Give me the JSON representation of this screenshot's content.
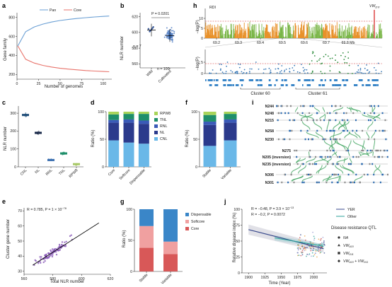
{
  "panels": {
    "a": {
      "label": "a",
      "legend": [
        "Pan",
        "Core"
      ],
      "colors": {
        "pan": "#6a9fd4",
        "core": "#e8736b"
      },
      "xlabel": "Number of genomes",
      "ylabel": "Gene family",
      "xticks": [
        "0",
        "25",
        "50",
        "75",
        "100"
      ],
      "yticks": [
        "200",
        "400",
        "600",
        "800"
      ]
    },
    "b": {
      "label": "b",
      "pvalue": "P = 0.0201",
      "n1": "n = 7",
      "n2": "n = 100",
      "ylabel": "NLR number",
      "yticks": [
        "560",
        "580",
        "600",
        "620"
      ],
      "categories": [
        "Wild",
        "Cultivated"
      ]
    },
    "c": {
      "label": "c",
      "ylabel": "NLR number",
      "yticks": [
        "0",
        "100",
        "200",
        "300"
      ],
      "categories": [
        "CNL",
        "NL",
        "RNL",
        "TNL",
        "RPW8"
      ],
      "colors": [
        "#1f4e79",
        "#1a2a4a",
        "#3b6fb0",
        "#1f8f6a",
        "#a8c868"
      ]
    },
    "d": {
      "label": "d",
      "ylabel": "Ratio (%)",
      "yticks": [
        "0",
        "50",
        "100"
      ],
      "categories": [
        "Core",
        "Softcore",
        "Dispensable"
      ],
      "legend": [
        "RPW8",
        "TNL",
        "RNL",
        "NL",
        "CNL"
      ],
      "colors": {
        "RPW8": "#a8d45a",
        "TNL": "#1f8f6a",
        "RNL": "#2b3a8c",
        "NL": "#2b3a8c",
        "CNL": "#6ab8e8"
      }
    },
    "e": {
      "label": "e",
      "annotation": "R = 0.785, P = 1 × 10",
      "annotation_exp": "−78",
      "xlabel": "Total NLR number",
      "ylabel": "Cluster gene number",
      "xticks": [
        "560",
        "580",
        "600",
        "620"
      ],
      "yticks": [
        "30",
        "40",
        "50",
        "60",
        "70"
      ]
    },
    "f": {
      "label": "f",
      "ylabel": "Ratio (%)",
      "yticks": [
        "0",
        "50",
        "100"
      ],
      "categories": [
        "Stable",
        "Variable"
      ]
    },
    "g": {
      "label": "g",
      "ylabel": "Ratio (%)",
      "yticks": [
        "0",
        "50",
        "100"
      ],
      "categories": [
        "Stable",
        "Variable"
      ],
      "legend": [
        "Dispensable",
        "Softcore",
        "Core"
      ],
      "colors": {
        "Dispensable": "#3a86c8",
        "Softcore": "#f0a0a0",
        "Core": "#d85858"
      }
    },
    "h": {
      "label": "h",
      "track": "RDI",
      "gene": "VW",
      "gene_sub": "DTI",
      "ylabel": "−log(P)",
      "yticks_top": [
        "0",
        "5",
        "10"
      ],
      "yticks_bot": [
        "0",
        "5"
      ],
      "xticks": [
        "69.2",
        "69.3",
        "69.4",
        "69.5",
        "69.6",
        "69.7",
        "69.8 Mb"
      ],
      "cluster1": "Cluster 60",
      "cluster2": "Cluster 61"
    },
    "i": {
      "label": "i",
      "rows": [
        "N244",
        "N248",
        "N215",
        "N258",
        "N230",
        "N275",
        "N205 (inversion)",
        "N235 (inversion)",
        "N306",
        "N301"
      ]
    },
    "j": {
      "label": "j",
      "stat1": "R = −0.48, P = 3.9 × 10",
      "stat1_exp": "−13",
      "stat2": "R = −0.2, P = 0.0072",
      "xlabel": "Time (Year)",
      "ylabel": "Relative disease index (%)",
      "xticks": [
        "1900",
        "1925",
        "1950",
        "1975",
        "2000"
      ],
      "yticks": [
        "0",
        "25",
        "50",
        "75",
        "100"
      ],
      "legend": [
        "YER",
        "Other"
      ],
      "legend_colors": {
        "YER": "#3a4a8c",
        "Other": "#2aa198"
      },
      "qtl_title": "Disease resistance QTL",
      "qtl": [
        "NA",
        "VW",
        "VW",
        "VW"
      ],
      "qtl_subs": [
        "",
        "A10",
        "D11",
        "A10"
      ],
      "qtl_last_suffix": " + VW",
      "qtl_last_sub": "D11"
    }
  },
  "chart_data": [
    {
      "type": "line",
      "panel": "a",
      "x": [
        1,
        10,
        20,
        30,
        40,
        50,
        60,
        70,
        80,
        90,
        100,
        107
      ],
      "series": [
        {
          "name": "Pan",
          "values": [
            500,
            650,
            700,
            730,
            752,
            768,
            780,
            790,
            798,
            805,
            811,
            815
          ]
        },
        {
          "name": "Core",
          "values": [
            500,
            360,
            320,
            295,
            278,
            265,
            256,
            248,
            241,
            236,
            231,
            228
          ]
        }
      ],
      "xlim": [
        0,
        110
      ],
      "ylim": [
        150,
        850
      ]
    },
    {
      "type": "scatter",
      "panel": "b",
      "categories": [
        "Wild",
        "Cultivated"
      ],
      "means": [
        603,
        596
      ],
      "ylim": [
        555,
        625
      ]
    },
    {
      "type": "box",
      "panel": "c",
      "categories": [
        "CNL",
        "NL",
        "RNL",
        "TNL",
        "RPW8"
      ],
      "values": [
        290,
        190,
        38,
        75,
        15
      ],
      "ylim": [
        0,
        340
      ]
    },
    {
      "type": "bar",
      "panel": "d",
      "categories": [
        "Core",
        "Softcore",
        "Dispensable"
      ],
      "series": [
        {
          "name": "CNL",
          "values": [
            48,
            44,
            42
          ]
        },
        {
          "name": "NL",
          "values": [
            32,
            36,
            36
          ]
        },
        {
          "name": "RNL",
          "values": [
            5,
            6,
            6
          ]
        },
        {
          "name": "TNL",
          "values": [
            10,
            10,
            12
          ]
        },
        {
          "name": "RPW8",
          "values": [
            5,
            4,
            4
          ]
        }
      ],
      "ylim": [
        0,
        100
      ]
    },
    {
      "type": "scatter",
      "panel": "e",
      "fit": [
        [
          566,
          34
        ],
        [
          612,
          62
        ]
      ],
      "xlim": [
        560,
        620
      ],
      "ylim": [
        28,
        72
      ]
    },
    {
      "type": "bar",
      "panel": "f",
      "categories": [
        "Stable",
        "Variable"
      ],
      "series": [
        {
          "name": "CNL",
          "values": [
            38,
            48
          ]
        },
        {
          "name": "NL",
          "values": [
            38,
            32
          ]
        },
        {
          "name": "RNL",
          "values": [
            6,
            6
          ]
        },
        {
          "name": "TNL",
          "values": [
            12,
            10
          ]
        },
        {
          "name": "RPW8",
          "values": [
            6,
            4
          ]
        }
      ],
      "ylim": [
        0,
        100
      ]
    },
    {
      "type": "bar",
      "panel": "g",
      "categories": [
        "Stable",
        "Variable"
      ],
      "series": [
        {
          "name": "Core",
          "values": [
            38,
            28
          ]
        },
        {
          "name": "Softcore",
          "values": [
            35,
            20
          ]
        },
        {
          "name": "Dispensable",
          "values": [
            27,
            52
          ]
        }
      ],
      "ylim": [
        0,
        100
      ]
    },
    {
      "type": "scatter",
      "panel": "j",
      "series": [
        {
          "name": "YER",
          "fit": [
            [
              1900,
              68
            ],
            [
              2015,
              38
            ]
          ]
        },
        {
          "name": "Other",
          "fit": [
            [
              1940,
              55
            ],
            [
              2015,
              42
            ]
          ]
        }
      ],
      "xlim": [
        1890,
        2020
      ],
      "ylim": [
        0,
        100
      ]
    }
  ]
}
